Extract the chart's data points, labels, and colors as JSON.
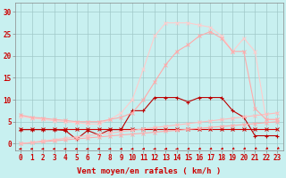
{
  "background_color": "#c8f0f0",
  "grid_color": "#a0c8c8",
  "x_label": "Vent moyen/en rafales ( km/h )",
  "x_ticks": [
    0,
    1,
    2,
    3,
    4,
    5,
    6,
    7,
    8,
    9,
    10,
    11,
    12,
    13,
    14,
    15,
    16,
    17,
    18,
    19,
    20,
    21,
    22,
    23
  ],
  "ylim": [
    -1.5,
    32
  ],
  "xlim": [
    -0.5,
    23.5
  ],
  "yticks": [
    0,
    5,
    10,
    15,
    20,
    25,
    30
  ],
  "lines": [
    {
      "x": [
        0,
        1,
        2,
        3,
        4,
        5,
        6,
        7,
        8,
        9,
        10,
        11,
        12,
        13,
        14,
        15,
        16,
        17,
        18,
        19,
        20,
        21,
        22,
        23
      ],
      "y": [
        3.3,
        3.3,
        3.3,
        3.3,
        3.3,
        3.3,
        3.3,
        3.3,
        3.3,
        3.3,
        3.3,
        3.3,
        3.3,
        3.3,
        3.3,
        3.3,
        3.3,
        3.3,
        3.3,
        3.3,
        3.3,
        3.3,
        3.3,
        3.3
      ],
      "color": "#cc0000",
      "linewidth": 0.8,
      "marker": "x",
      "markersize": 2.5,
      "linestyle": "-",
      "markeredgewidth": 0.7
    },
    {
      "x": [
        0,
        1,
        2,
        3,
        4,
        5,
        6,
        7,
        8,
        9,
        10,
        11,
        12,
        13,
        14,
        15,
        16,
        17,
        18,
        19,
        20,
        21,
        22,
        23
      ],
      "y": [
        3.2,
        3.2,
        3.2,
        3.2,
        3.0,
        1.0,
        3.0,
        2.0,
        3.2,
        3.2,
        7.5,
        7.5,
        10.5,
        10.5,
        10.5,
        9.5,
        10.5,
        10.5,
        10.5,
        7.5,
        6.0,
        1.8,
        1.8,
        1.8
      ],
      "color": "#bb0000",
      "linewidth": 0.8,
      "marker": "+",
      "markersize": 3.5,
      "linestyle": "-",
      "markeredgewidth": 0.8
    },
    {
      "x": [
        0,
        1,
        2,
        3,
        4,
        5,
        6,
        7,
        8,
        9,
        10,
        11,
        12,
        13,
        14,
        15,
        16,
        17,
        18,
        19,
        20,
        21,
        22,
        23
      ],
      "y": [
        0.0,
        0.22,
        0.43,
        0.65,
        0.87,
        1.09,
        1.3,
        1.52,
        1.74,
        1.96,
        2.17,
        2.39,
        2.61,
        2.83,
        3.04,
        3.26,
        3.48,
        3.7,
        3.91,
        4.13,
        4.35,
        4.57,
        4.78,
        5.0
      ],
      "color": "#ffaaaa",
      "linewidth": 0.8,
      "marker": "x",
      "markersize": 2.5,
      "linestyle": "-",
      "markeredgewidth": 0.7
    },
    {
      "x": [
        0,
        1,
        2,
        3,
        4,
        5,
        6,
        7,
        8,
        9,
        10,
        11,
        12,
        13,
        14,
        15,
        16,
        17,
        18,
        19,
        20,
        21,
        22,
        23
      ],
      "y": [
        0.0,
        0.3,
        0.61,
        0.91,
        1.22,
        1.52,
        1.83,
        2.13,
        2.43,
        2.74,
        3.04,
        3.35,
        3.65,
        3.96,
        4.26,
        4.57,
        4.87,
        5.17,
        5.48,
        5.78,
        6.09,
        6.39,
        6.7,
        7.0
      ],
      "color": "#ffbbbb",
      "linewidth": 0.8,
      "marker": "x",
      "markersize": 2.5,
      "linestyle": "-",
      "markeredgewidth": 0.7
    },
    {
      "x": [
        0,
        1,
        2,
        3,
        4,
        5,
        6,
        7,
        8,
        9,
        10,
        11,
        12,
        13,
        14,
        15,
        16,
        17,
        18,
        19,
        20,
        21,
        22,
        23
      ],
      "y": [
        6.2,
        5.8,
        5.5,
        5.2,
        5.0,
        4.8,
        4.5,
        4.5,
        5.5,
        7.0,
        10.0,
        17.0,
        24.5,
        27.5,
        27.5,
        27.5,
        27.0,
        26.5,
        24.5,
        21.0,
        24.0,
        21.0,
        5.5,
        5.5
      ],
      "color": "#ffcccc",
      "linewidth": 0.8,
      "marker": "x",
      "markersize": 2.5,
      "linestyle": "-",
      "markeredgewidth": 0.7
    },
    {
      "x": [
        0,
        1,
        2,
        3,
        4,
        5,
        6,
        7,
        8,
        9,
        10,
        11,
        12,
        13,
        14,
        15,
        16,
        17,
        18,
        19,
        20,
        21,
        22,
        23
      ],
      "y": [
        6.5,
        6.0,
        5.8,
        5.5,
        5.3,
        5.0,
        5.0,
        5.0,
        5.5,
        6.0,
        7.0,
        10.0,
        14.0,
        18.0,
        21.0,
        22.5,
        24.5,
        25.5,
        24.0,
        21.0,
        21.0,
        8.0,
        5.5,
        5.5
      ],
      "color": "#ffaaaa",
      "linewidth": 0.8,
      "marker": "x",
      "markersize": 2.5,
      "linestyle": "-",
      "markeredgewidth": 0.7
    }
  ],
  "tick_fontsize": 5.5,
  "axis_fontsize": 6.5,
  "arrow_color": "#cc0000"
}
